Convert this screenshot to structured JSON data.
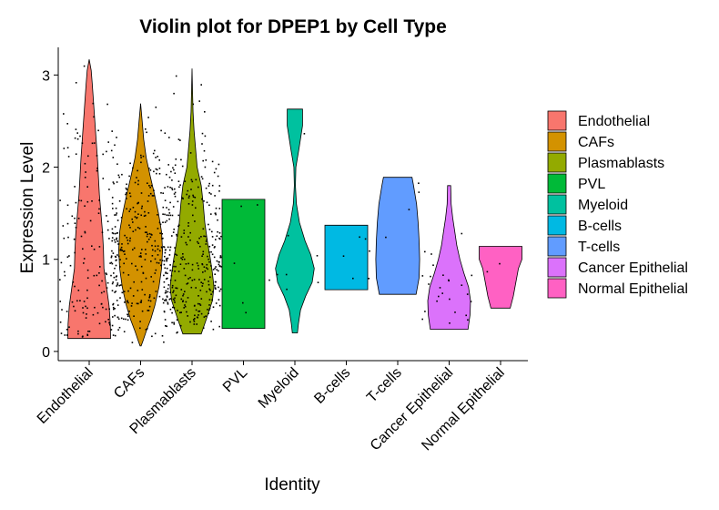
{
  "chart_data": {
    "type": "violin",
    "title": "Violin plot for DPEP1 by Cell Type",
    "xlabel": "Identity",
    "ylabel": "Expression Level",
    "ylim": [
      -0.1,
      3.3
    ],
    "yticks": [
      0,
      1,
      2,
      3
    ],
    "grid": false,
    "legend_position": "right",
    "categories": [
      "Endothelial",
      "CAFs",
      "Plasmablasts",
      "PVL",
      "Myeloid",
      "B-cells",
      "T-cells",
      "Cancer Epithelial",
      "Normal Epithelial"
    ],
    "series": [
      {
        "name": "Endothelial",
        "color": "#F8766D",
        "min": 0.14,
        "max": 3.17,
        "y": [
          0.14,
          0.3,
          0.5,
          0.7,
          0.9,
          1.1,
          1.3,
          1.5,
          1.7,
          1.9,
          2.1,
          2.3,
          2.5,
          2.7,
          2.9,
          3.05,
          3.17
        ],
        "width": [
          0.84,
          0.83,
          0.78,
          0.68,
          0.58,
          0.56,
          0.52,
          0.46,
          0.4,
          0.36,
          0.32,
          0.27,
          0.22,
          0.17,
          0.12,
          0.08,
          0.0
        ],
        "n_points": 170
      },
      {
        "name": "CAFs",
        "color": "#D39200",
        "min": 0.06,
        "max": 2.69,
        "y": [
          0.06,
          0.12,
          0.22,
          0.35,
          0.5,
          0.7,
          0.9,
          1.1,
          1.3,
          1.5,
          1.7,
          1.9,
          2.1,
          2.3,
          2.5,
          2.69
        ],
        "width": [
          0.02,
          0.1,
          0.22,
          0.4,
          0.56,
          0.72,
          0.82,
          0.86,
          0.82,
          0.7,
          0.55,
          0.38,
          0.22,
          0.12,
          0.06,
          0.0
        ],
        "n_points": 300
      },
      {
        "name": "Plasmablasts",
        "color": "#93AA00",
        "min": 0.19,
        "max": 3.07,
        "y": [
          0.19,
          0.35,
          0.55,
          0.7,
          0.85,
          1.0,
          1.2,
          1.4,
          1.6,
          1.8,
          2.0,
          2.2,
          2.4,
          2.6,
          2.8,
          3.07
        ],
        "width": [
          0.36,
          0.56,
          0.8,
          0.86,
          0.8,
          0.72,
          0.6,
          0.5,
          0.44,
          0.36,
          0.2,
          0.14,
          0.08,
          0.04,
          0.02,
          0.0
        ],
        "n_points": 340
      },
      {
        "name": "PVL",
        "color": "#00BA38",
        "min": 0.25,
        "max": 1.65,
        "y": [
          0.25,
          0.4,
          0.7,
          1.0,
          1.3,
          1.65
        ],
        "width": [
          0.84,
          0.84,
          0.84,
          0.84,
          0.84,
          0.84
        ],
        "n_points": 5
      },
      {
        "name": "Myeloid",
        "color": "#00C19F",
        "min": 0.2,
        "max": 2.63,
        "y": [
          0.2,
          0.3,
          0.45,
          0.6,
          0.75,
          0.9,
          1.05,
          1.2,
          1.4,
          1.6,
          1.8,
          2.0,
          2.2,
          2.45,
          2.63
        ],
        "width": [
          0.1,
          0.14,
          0.22,
          0.42,
          0.68,
          0.76,
          0.62,
          0.4,
          0.18,
          0.06,
          0.02,
          0.04,
          0.16,
          0.3,
          0.3
        ],
        "n_points": 8
      },
      {
        "name": "B-cells",
        "color": "#00B9E3",
        "min": 0.67,
        "max": 1.37,
        "y": [
          0.67,
          0.8,
          0.95,
          1.1,
          1.25,
          1.37
        ],
        "width": [
          0.84,
          0.84,
          0.84,
          0.84,
          0.84,
          0.84
        ],
        "n_points": 5
      },
      {
        "name": "T-cells",
        "color": "#619CFF",
        "min": 0.62,
        "max": 1.89,
        "y": [
          0.62,
          0.8,
          1.0,
          1.2,
          1.4,
          1.6,
          1.8,
          1.89
        ],
        "width": [
          0.72,
          0.84,
          0.86,
          0.84,
          0.8,
          0.74,
          0.62,
          0.56
        ],
        "n_points": 5
      },
      {
        "name": "Cancer Epithelial",
        "color": "#DB72FB",
        "min": 0.24,
        "max": 1.8,
        "y": [
          0.24,
          0.4,
          0.55,
          0.7,
          0.85,
          1.0,
          1.15,
          1.3,
          1.45,
          1.6,
          1.8
        ],
        "width": [
          0.74,
          0.82,
          0.84,
          0.76,
          0.58,
          0.42,
          0.3,
          0.22,
          0.14,
          0.08,
          0.06
        ],
        "n_points": 25
      },
      {
        "name": "Normal Epithelial",
        "color": "#FF61C3",
        "min": 0.47,
        "max": 1.14,
        "y": [
          0.47,
          0.6,
          0.75,
          0.9,
          1.0,
          1.14
        ],
        "width": [
          0.38,
          0.5,
          0.6,
          0.7,
          0.84,
          0.84
        ],
        "n_points": 2
      }
    ]
  }
}
